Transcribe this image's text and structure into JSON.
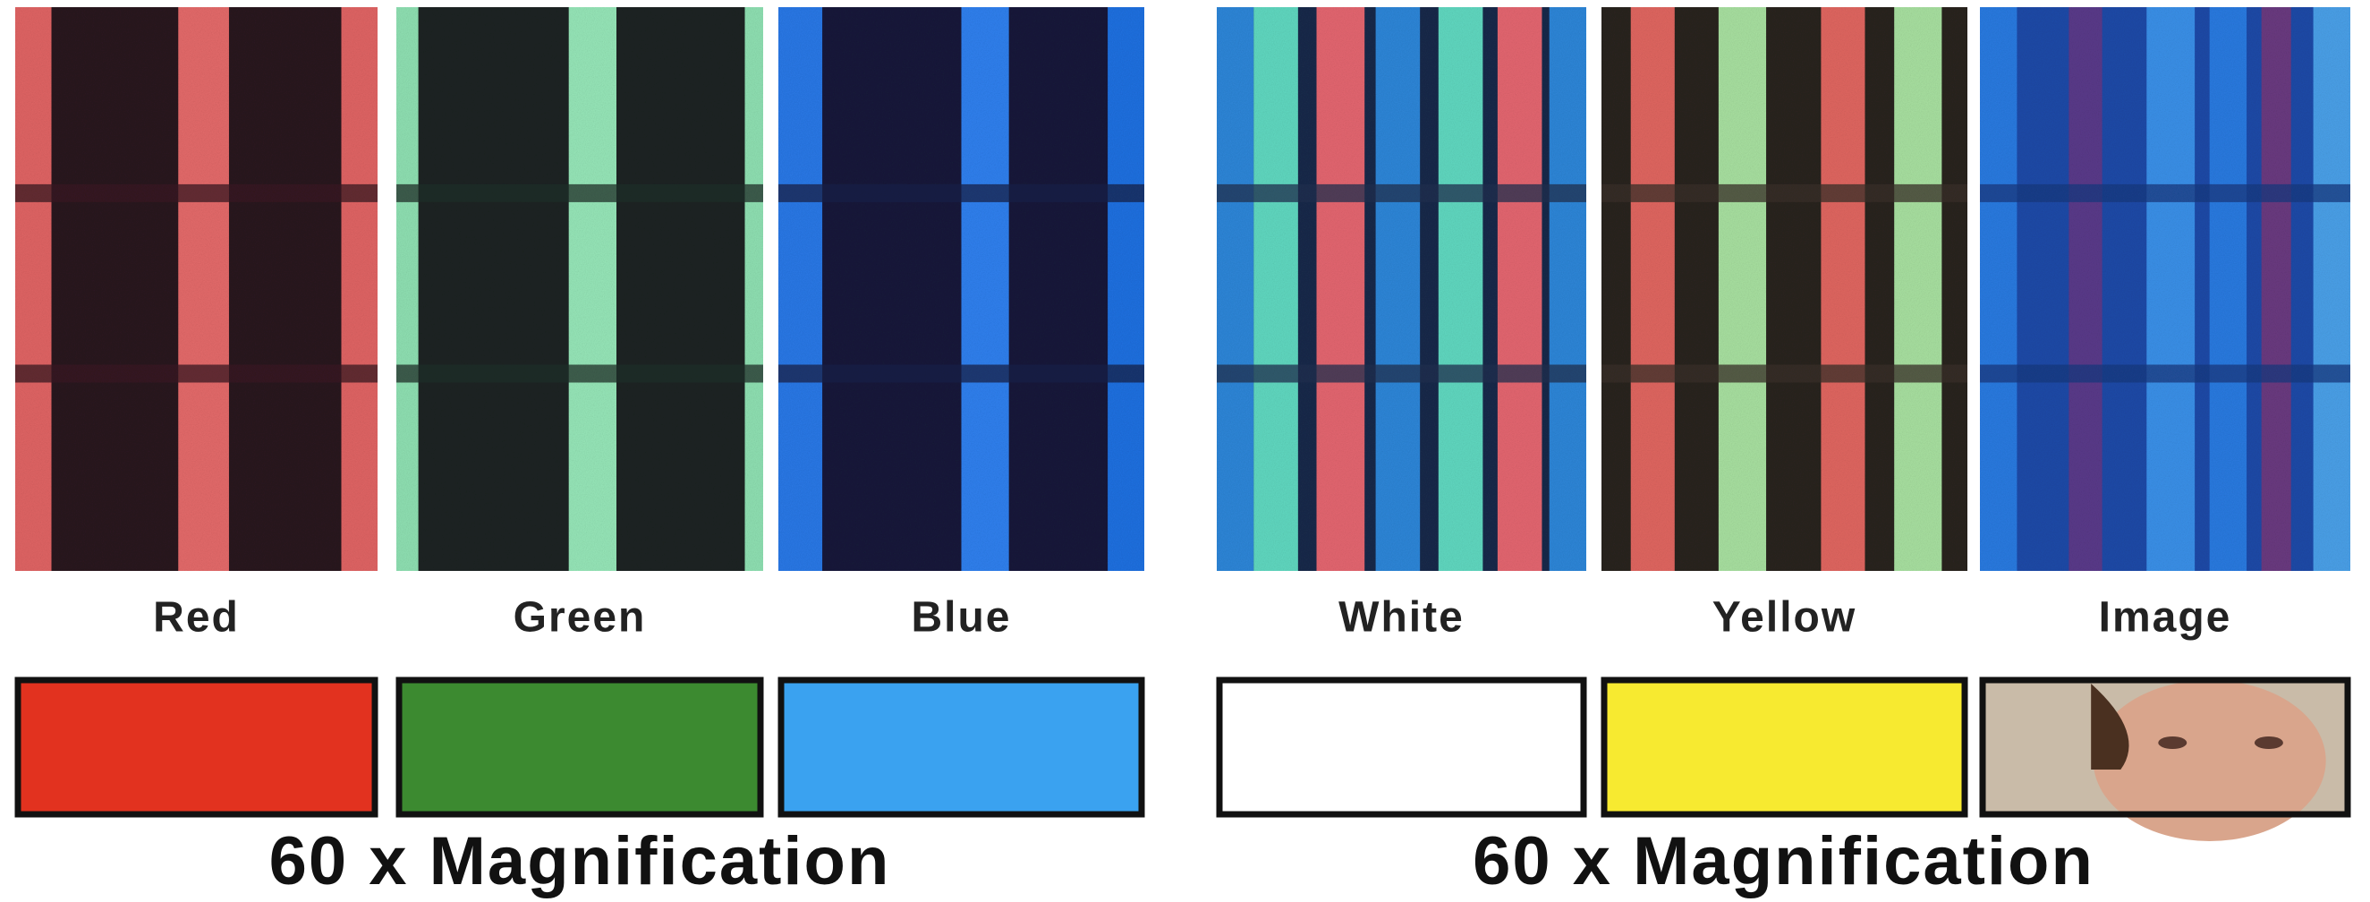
{
  "groups": [
    {
      "panels": [
        {
          "label": "Red"
        },
        {
          "label": "Green"
        },
        {
          "label": "Blue"
        }
      ],
      "caption": "60 x Magnification"
    },
    {
      "panels": [
        {
          "label": "White"
        },
        {
          "label": "Yellow"
        },
        {
          "label": "Image"
        }
      ],
      "caption": "60 x Magnification"
    }
  ]
}
